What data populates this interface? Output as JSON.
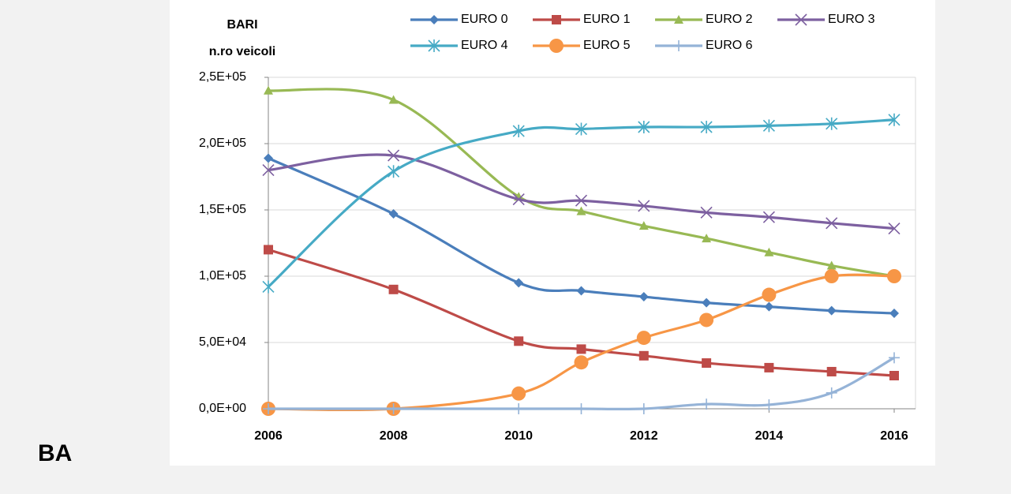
{
  "page": {
    "label": "BA"
  },
  "chart_data": {
    "type": "line",
    "smooth": true,
    "annotations": [
      "BARI",
      "n.ro veicoli"
    ],
    "x": [
      2006,
      2008,
      2010,
      2011,
      2012,
      2013,
      2014,
      2015,
      2016
    ],
    "xlim": [
      2006,
      2016
    ],
    "xticks": [
      2006,
      2008,
      2010,
      2012,
      2014,
      2016
    ],
    "ylim": [
      0,
      250000
    ],
    "yticks": [
      {
        "value": 0,
        "label": "0,0E+00"
      },
      {
        "value": 50000,
        "label": "5,0E+04"
      },
      {
        "value": 100000,
        "label": "1,0E+05"
      },
      {
        "value": 150000,
        "label": "1,5E+05"
      },
      {
        "value": 200000,
        "label": "2,0E+05"
      },
      {
        "value": 250000,
        "label": "2,5E+05"
      }
    ],
    "grid": true,
    "legend": "top",
    "series": [
      {
        "name": "EURO 0",
        "color": "#4a7ebb",
        "marker": "diamond",
        "values": [
          189000,
          147000,
          95000,
          89000,
          84500,
          80000,
          77000,
          74000,
          72000
        ]
      },
      {
        "name": "EURO 1",
        "color": "#be4b48",
        "marker": "square",
        "values": [
          120000,
          90000,
          51000,
          45000,
          40000,
          34500,
          31000,
          28000,
          25000
        ]
      },
      {
        "name": "EURO 2",
        "color": "#98b954",
        "marker": "triangle",
        "values": [
          240000,
          233000,
          160000,
          149000,
          138000,
          128500,
          118000,
          108000,
          100000
        ]
      },
      {
        "name": "EURO 3",
        "color": "#7d60a0",
        "marker": "x",
        "values": [
          180000,
          191000,
          158000,
          157000,
          153000,
          148000,
          144500,
          140000,
          136000
        ]
      },
      {
        "name": "EURO 4",
        "color": "#46aac5",
        "marker": "star",
        "values": [
          92000,
          179000,
          209500,
          211000,
          212500,
          212500,
          213500,
          215000,
          218000
        ]
      },
      {
        "name": "EURO 5",
        "color": "#f79646",
        "marker": "circle",
        "values": [
          0,
          0,
          11500,
          35000,
          53500,
          67000,
          86000,
          100000,
          100000
        ]
      },
      {
        "name": "EURO 6",
        "color": "#95b3d7",
        "marker": "plus",
        "values": [
          0,
          0,
          0,
          0,
          0,
          3500,
          3000,
          12000,
          38500
        ]
      }
    ]
  }
}
